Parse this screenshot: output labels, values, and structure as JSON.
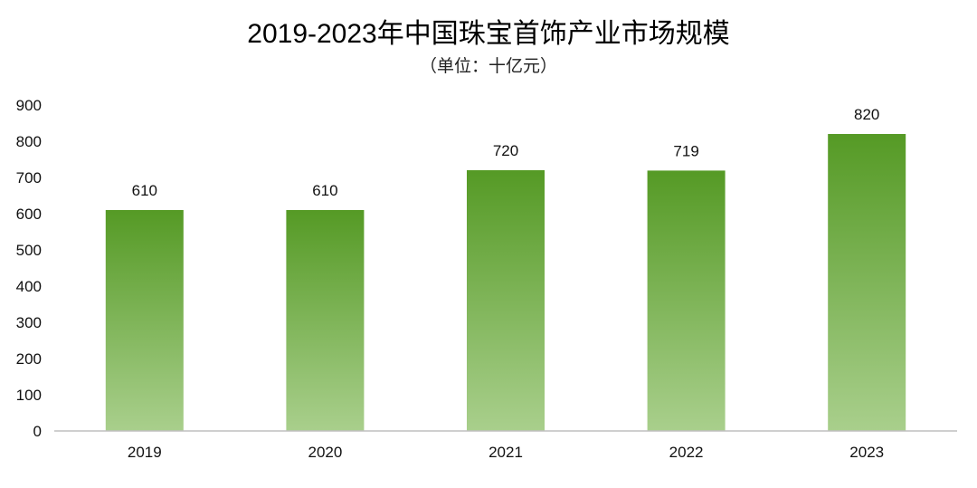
{
  "chart_data": {
    "type": "bar",
    "title": "2019-2023年中国珠宝首饰产业市场规模",
    "subtitle": "（单位：十亿元）",
    "categories": [
      "2019",
      "2020",
      "2021",
      "2022",
      "2023"
    ],
    "values": [
      610,
      610,
      720,
      719,
      820
    ],
    "ylim": [
      0,
      900
    ],
    "yticks": [
      0,
      100,
      200,
      300,
      400,
      500,
      600,
      700,
      800,
      900
    ],
    "grid": false,
    "legend": "none",
    "data_labels": true,
    "colors": {
      "bar_top": "#559a25",
      "bar_bottom": "#a9cf8c",
      "axis": "#bfbfbf"
    }
  }
}
